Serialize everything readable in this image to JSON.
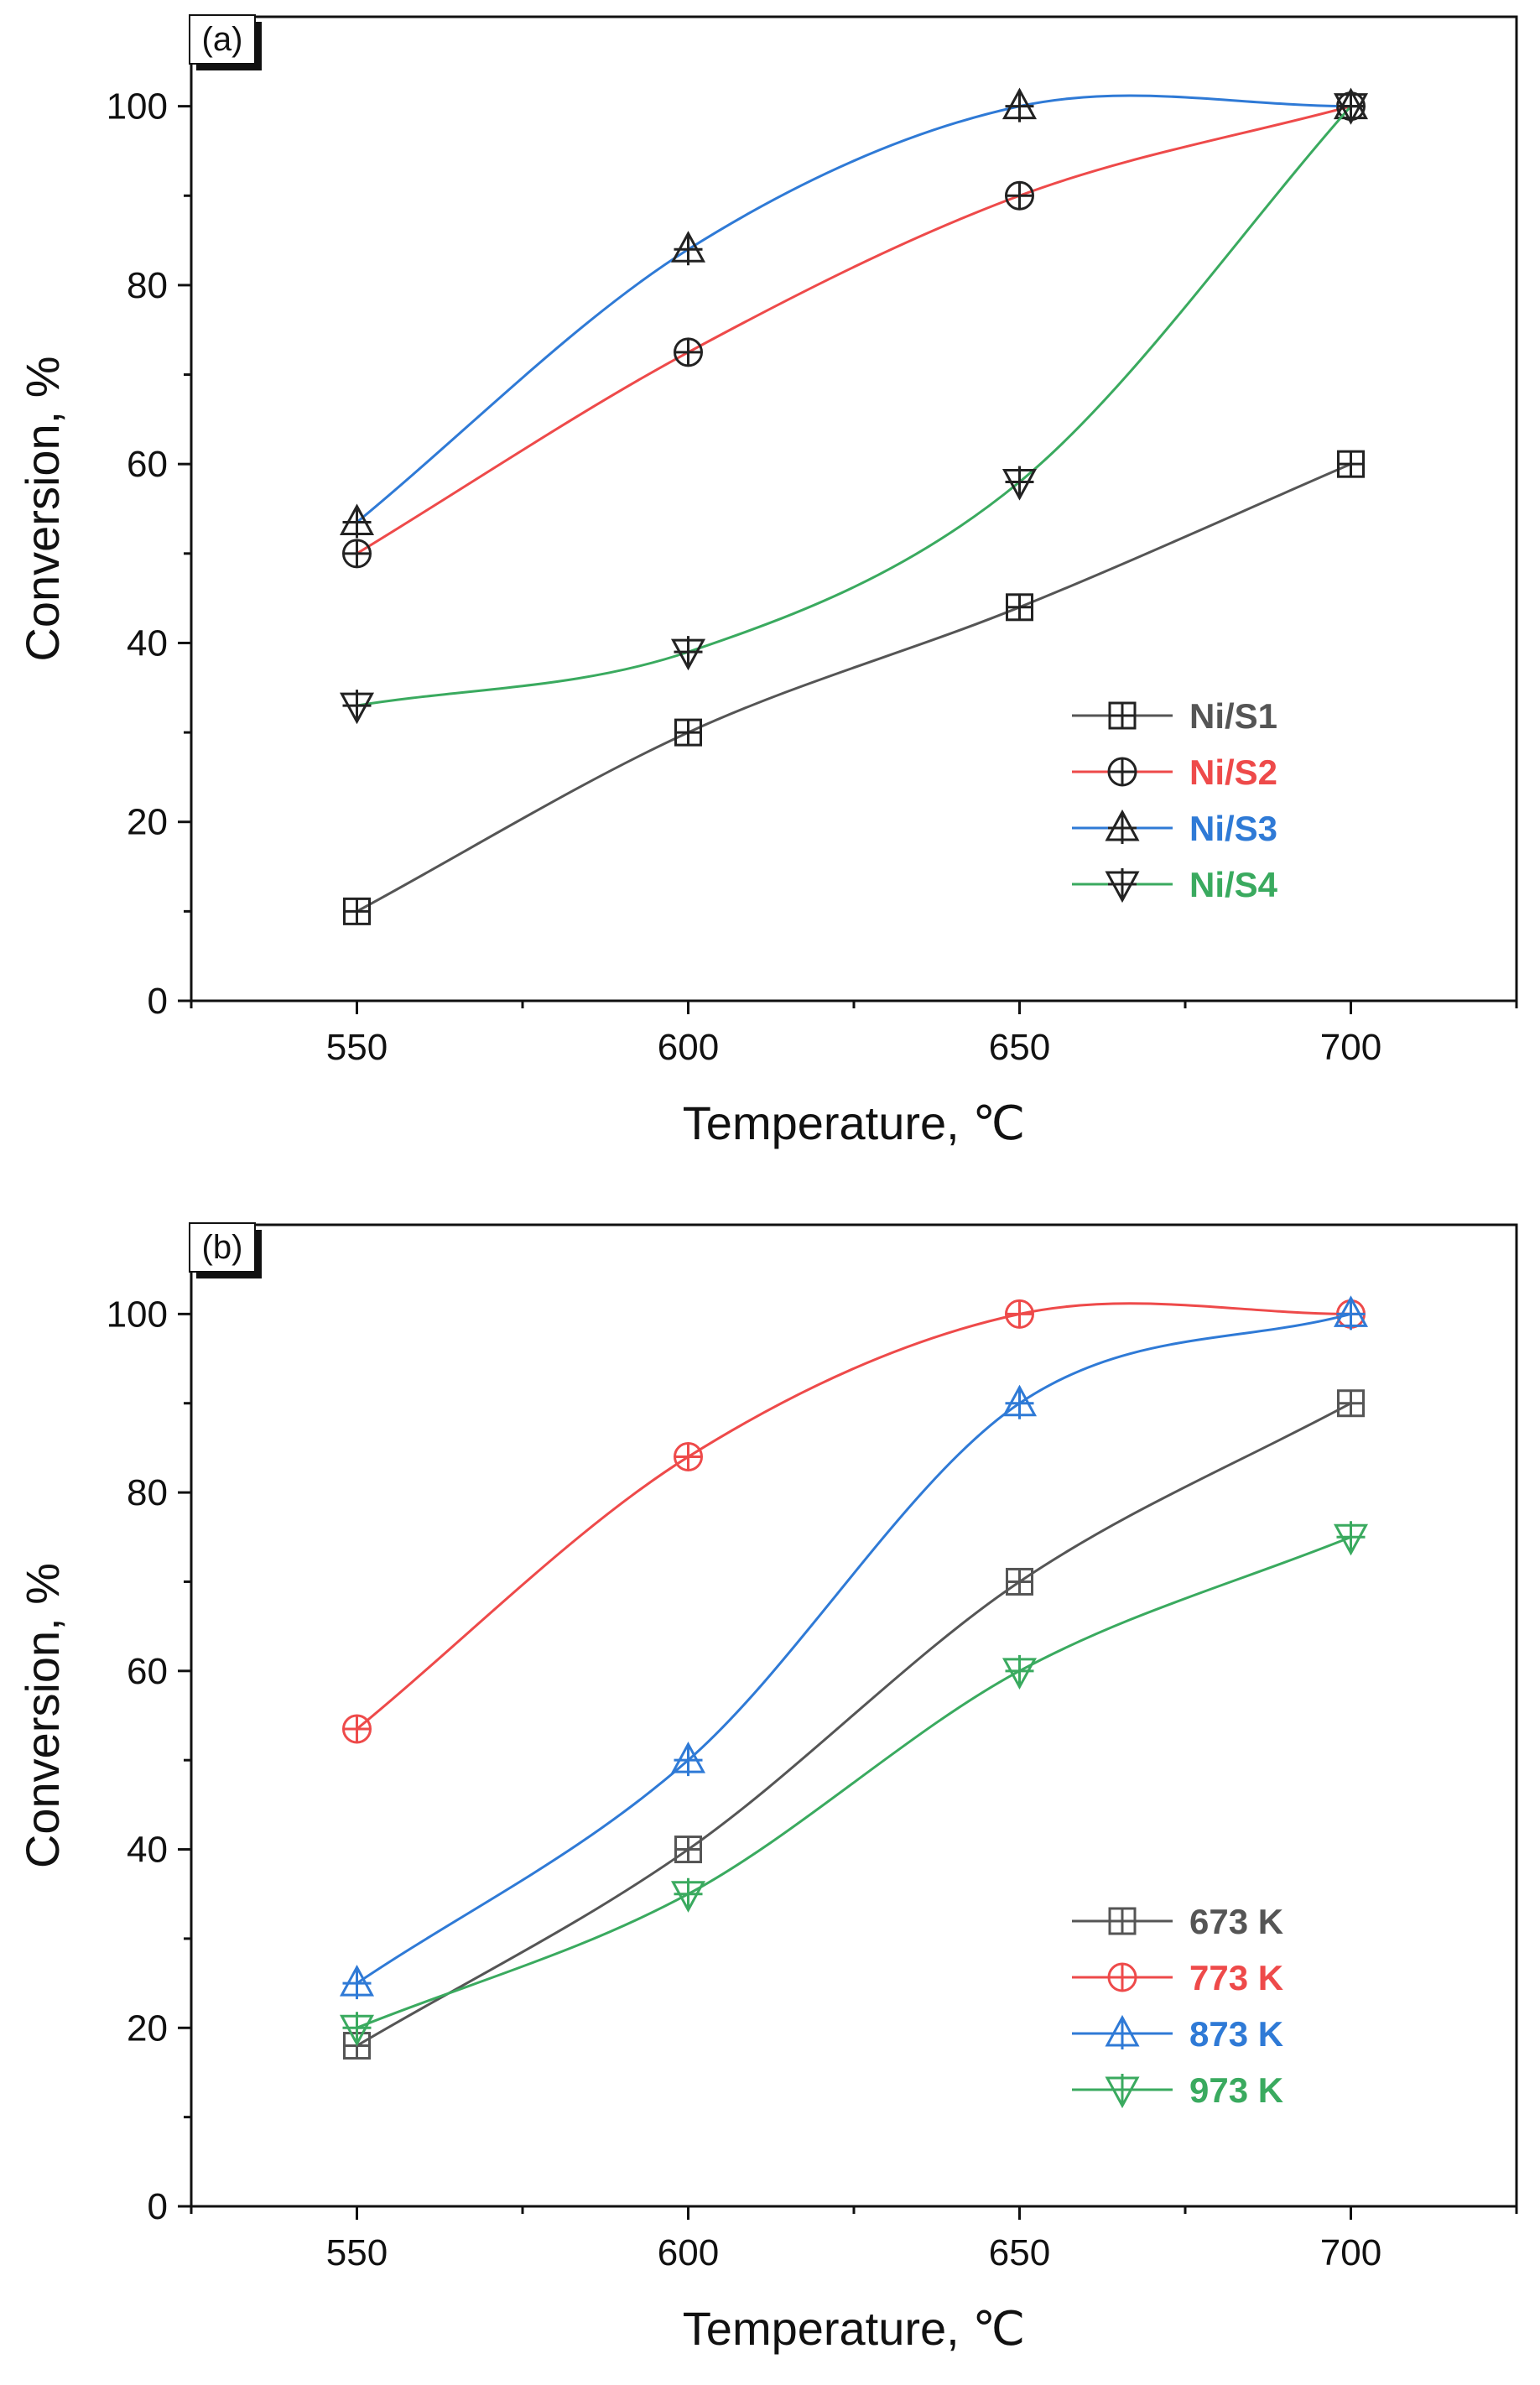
{
  "chart_data": [
    {
      "type": "line",
      "panel_label": "(a)",
      "xlabel": "Temperature, ℃",
      "ylabel": "Conversion, %",
      "x": [
        550,
        600,
        650,
        700
      ],
      "xticks": [
        "550",
        "600",
        "650",
        "700"
      ],
      "yticks": [
        "0",
        "20",
        "40",
        "60",
        "80",
        "100"
      ],
      "xlim": [
        525,
        725
      ],
      "ylim": [
        0,
        110
      ],
      "grid": false,
      "legend_position": "lower-right",
      "series": [
        {
          "name": "Ni/S1",
          "values": [
            10,
            30,
            44,
            60
          ],
          "color": "#555555",
          "marker": "square-cross",
          "marker_color": "#222222"
        },
        {
          "name": "Ni/S2",
          "values": [
            50,
            72.5,
            90,
            100
          ],
          "color": "#ee4a4a",
          "marker": "circle-cross",
          "marker_color": "#222222"
        },
        {
          "name": "Ni/S3",
          "values": [
            53.5,
            84,
            100,
            100
          ],
          "color": "#2f7ad6",
          "marker": "triangle-up-cross",
          "marker_color": "#222222"
        },
        {
          "name": "Ni/S4",
          "values": [
            33,
            39,
            58,
            100
          ],
          "color": "#3aaa5f",
          "marker": "triangle-down-cross",
          "marker_color": "#222222"
        }
      ]
    },
    {
      "type": "line",
      "panel_label": "(b)",
      "xlabel": "Temperature, ℃",
      "ylabel": "Conversion, %",
      "x": [
        550,
        600,
        650,
        700
      ],
      "xticks": [
        "550",
        "600",
        "650",
        "700"
      ],
      "yticks": [
        "0",
        "20",
        "40",
        "60",
        "80",
        "100"
      ],
      "xlim": [
        525,
        725
      ],
      "ylim": [
        0,
        110
      ],
      "grid": false,
      "legend_position": "lower-right",
      "series": [
        {
          "name": "673 K",
          "values": [
            18,
            40,
            70,
            90
          ],
          "color": "#555555",
          "marker": "square-cross",
          "marker_color": "#555555"
        },
        {
          "name": "773 K",
          "values": [
            53.5,
            84,
            100,
            100
          ],
          "color": "#ee4a4a",
          "marker": "circle-cross",
          "marker_color": "#ee4a4a"
        },
        {
          "name": "873 K",
          "values": [
            25,
            50,
            90,
            100
          ],
          "color": "#2f7ad6",
          "marker": "triangle-up-cross",
          "marker_color": "#2f7ad6"
        },
        {
          "name": "973 K",
          "values": [
            20,
            35,
            60,
            75
          ],
          "color": "#3aaa5f",
          "marker": "triangle-down-cross",
          "marker_color": "#3aaa5f"
        }
      ]
    }
  ]
}
